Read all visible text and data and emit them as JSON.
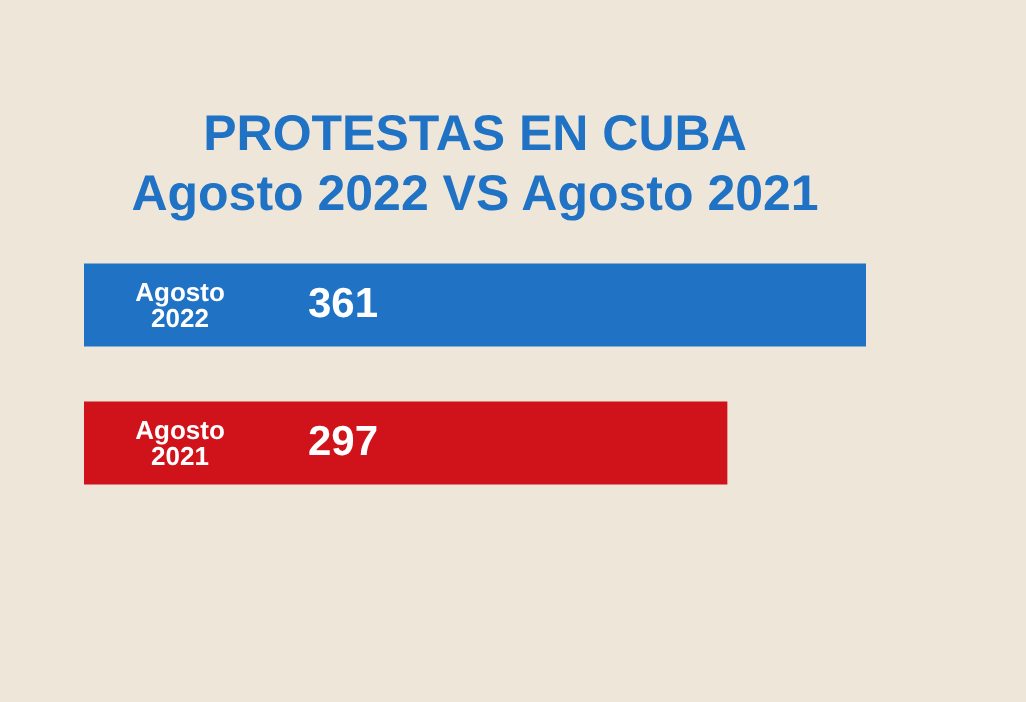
{
  "chart_data": {
    "type": "bar",
    "orientation": "horizontal",
    "title": [
      "PROTESTAS EN CUBA",
      "Agosto 2022 VS Agosto 2021"
    ],
    "categories": [
      "Agosto 2022",
      "Agosto 2021"
    ],
    "values": [
      361,
      297
    ],
    "colors": [
      "#1f72c4",
      "#d0121b"
    ],
    "data_labels": true,
    "legend": false
  }
}
